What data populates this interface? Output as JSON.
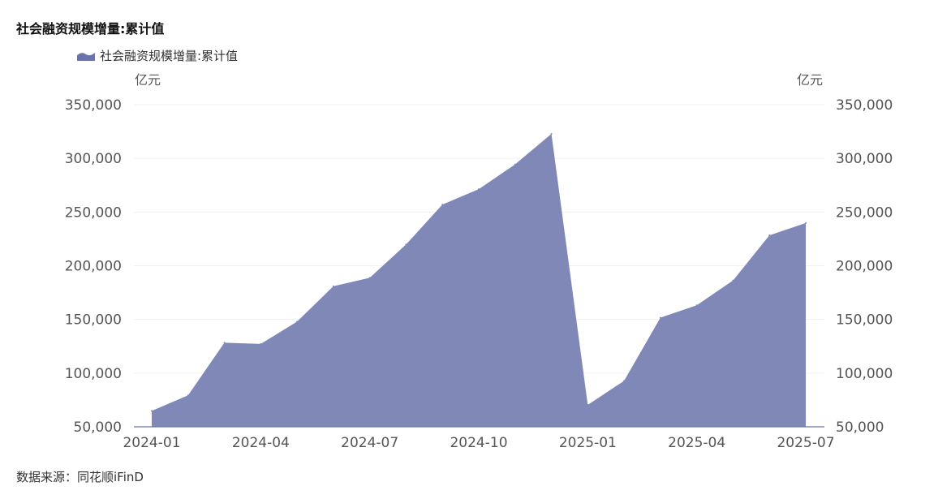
{
  "title": "社会融资规模增量:累计值",
  "legend": {
    "label": "社会融资规模增量:累计值"
  },
  "units": {
    "left": "亿元",
    "right": "亿元"
  },
  "source": "数据来源：同花顺iFinD",
  "colors": {
    "area": "#8088b8",
    "grid": "#edf0f6",
    "axis": "#6b74a8"
  },
  "chart_data": {
    "type": "area",
    "title": "社会融资规模增量:累计值",
    "x": [
      "2024-01",
      "2024-02",
      "2024-03",
      "2024-04",
      "2024-05",
      "2024-06",
      "2024-07",
      "2024-08",
      "2024-09",
      "2024-10",
      "2024-11",
      "2024-12",
      "2025-01",
      "2025-02",
      "2025-03",
      "2025-04",
      "2025-05",
      "2025-06",
      "2025-07"
    ],
    "x_tick_labels": [
      "2024-01",
      "2024-04",
      "2024-07",
      "2024-10",
      "2025-01",
      "2025-04",
      "2025-07"
    ],
    "series": [
      {
        "name": "社会融资规模增量:累计值",
        "values": [
          64800,
          79300,
          128300,
          127200,
          148000,
          180900,
          188800,
          219800,
          257000,
          271300,
          294400,
          322800,
          70400,
          92800,
          151600,
          163200,
          186300,
          228300,
          239800
        ]
      }
    ],
    "y_ticks": [
      50000,
      100000,
      150000,
      200000,
      250000,
      300000,
      350000
    ],
    "y_tick_labels": [
      "50,000",
      "100,000",
      "150,000",
      "200,000",
      "250,000",
      "300,000",
      "350,000"
    ],
    "ylim": [
      50000,
      350000
    ],
    "ylabel_left": "亿元",
    "ylabel_right": "亿元",
    "grid": true,
    "legend_position": "top-left"
  }
}
